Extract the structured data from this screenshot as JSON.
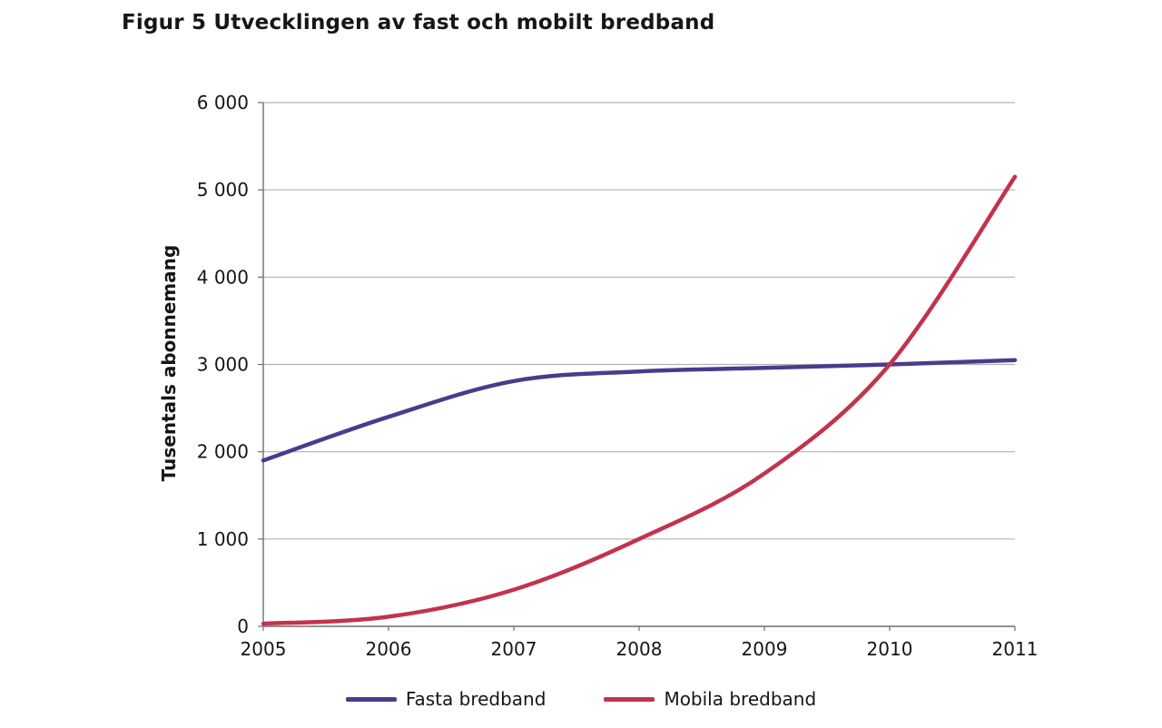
{
  "chart_data": {
    "type": "line",
    "title": "Figur 5 Utvecklingen av fast och mobilt bredband",
    "ylabel": "Tusentals abonnemang",
    "xlabel": "",
    "x": [
      2005,
      2006,
      2007,
      2008,
      2009,
      2010,
      2011
    ],
    "series": [
      {
        "name": "Fasta bredband",
        "color": "#4B3B8C",
        "values": [
          1900,
          2400,
          2810,
          2920,
          2960,
          3000,
          3050
        ]
      },
      {
        "name": "Mobila bredband",
        "color": "#C2334D",
        "values": [
          30,
          110,
          420,
          1000,
          1750,
          3000,
          5150
        ]
      }
    ],
    "ylim": [
      0,
      6000
    ],
    "ytick_step": 1000,
    "grid": "horizontal",
    "legend_position": "bottom",
    "colors": {
      "grid": "#b3b3b3",
      "axis": "#6e6e6e",
      "tick_text": "#161616"
    }
  }
}
